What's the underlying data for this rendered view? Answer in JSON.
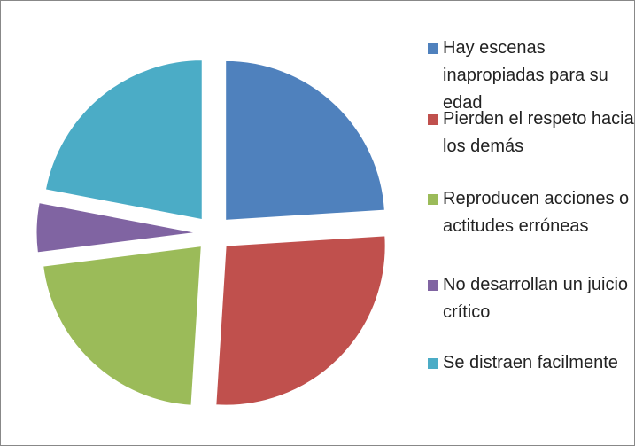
{
  "chart_data": {
    "type": "pie",
    "categories": [
      "Hay escenas inapropiadas para su edad",
      "Pierden el respeto hacia los demás",
      "Reproducen acciones o actitudes erróneas",
      "No desarrollan un juicio crítico",
      "Se distraen facilmente"
    ],
    "values": [
      24,
      27,
      22,
      5,
      22
    ],
    "colors": [
      "#4f81bd",
      "#c0504d",
      "#9bbb59",
      "#8064a2",
      "#4bacc6"
    ],
    "legend": "right"
  }
}
